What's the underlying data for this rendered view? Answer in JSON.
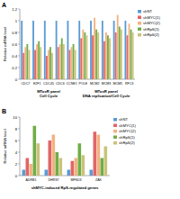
{
  "chart_data": [
    {
      "type": "bar",
      "title": "A",
      "ylabel": "Relative mRNA level",
      "categories": [
        "CDC7",
        "E2F1",
        "CDC45",
        "CDC6",
        "CCNE1",
        "POLE",
        "MCM2",
        "MCM3",
        "MCM5",
        "RFC3"
      ],
      "annotations": [
        [
          "MToxR panel",
          "Cell Cycle"
        ],
        [
          "MToxR panel",
          "DNA replication/Cell Cycle"
        ]
      ],
      "series": [
        {
          "name": "shNT",
          "color": "#5b9bd5",
          "values": [
            1,
            1,
            1,
            1,
            1,
            1,
            1,
            1,
            1,
            1
          ]
        },
        {
          "name": "shMYC(1)",
          "color": "#e06666",
          "values": [
            0.45,
            0.5,
            0.4,
            0.55,
            0.5,
            0.7,
            0.75,
            0.65,
            0.8,
            0.75
          ]
        },
        {
          "name": "shMYC(2)",
          "color": "#f4b183",
          "values": [
            0.55,
            0.6,
            0.5,
            0.6,
            0.55,
            0.85,
            1.05,
            0.8,
            1.1,
            0.95
          ]
        },
        {
          "name": "shRpS(1)",
          "color": "#70ad47",
          "values": [
            0.6,
            0.65,
            0.55,
            0.7,
            0.6,
            0.8,
            0.85,
            0.75,
            0.9,
            0.85
          ]
        },
        {
          "name": "shRpS(2)",
          "color": "#c9c37a",
          "values": [
            0.5,
            0.55,
            0.45,
            0.6,
            0.5,
            0.75,
            0.8,
            0.7,
            0.85,
            0.8
          ]
        }
      ],
      "ylim": [
        0,
        1.2
      ],
      "yticks": [
        0,
        0.2,
        0.4,
        0.6,
        0.8,
        1,
        1.2
      ],
      "grid": false,
      "legend": "right"
    },
    {
      "type": "bar",
      "title": "B",
      "ylabel": "Relative mRNA level",
      "xlabel": "shMYC-induced RpS-regulated genes",
      "categories": [
        "ADRB1",
        "DHRS7",
        "MFSD3",
        "ZAK"
      ],
      "series": [
        {
          "name": "shNT",
          "color": "#5b9bd5",
          "values": [
            1,
            1,
            1,
            1
          ]
        },
        {
          "name": "shMYC(1)",
          "color": "#e06666",
          "values": [
            3,
            6,
            2.5,
            7.5
          ]
        },
        {
          "name": "shMYC(2)",
          "color": "#f4b183",
          "values": [
            2,
            7,
            3,
            7
          ]
        },
        {
          "name": "shRpS(1)",
          "color": "#70ad47",
          "values": [
            8.5,
            4,
            5.5,
            3
          ]
        },
        {
          "name": "shRpS(2)",
          "color": "#c9c37a",
          "values": [
            5.5,
            3,
            3.5,
            5
          ]
        }
      ],
      "ylim": [
        0,
        10
      ],
      "yticks": [
        0,
        2,
        4,
        6,
        8,
        10
      ],
      "grid": false,
      "legend": "right"
    }
  ]
}
